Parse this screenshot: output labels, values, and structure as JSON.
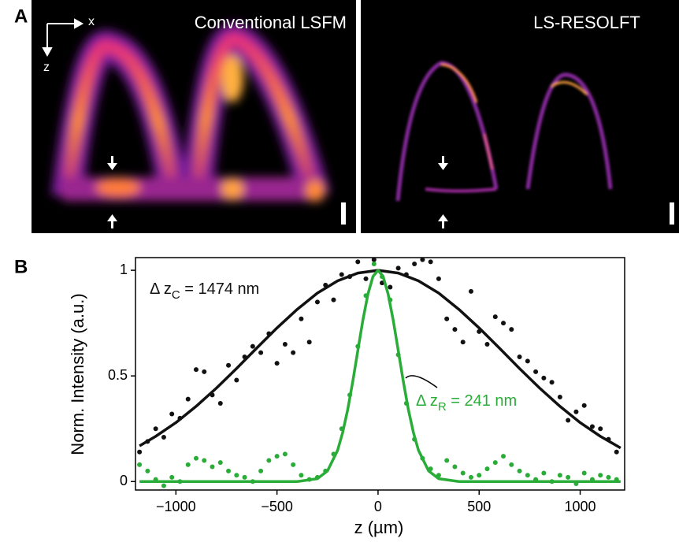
{
  "panel_a": {
    "label": "A",
    "axis_x": "x",
    "axis_z": "z",
    "left_title": "Conventional LSFM",
    "right_title": "LS-RESOLFT"
  },
  "chart_data": {
    "type": "scatter",
    "panel_label": "B",
    "x_label": "z (µm)",
    "y_label": "Norm. Intensity (a.u.)",
    "xlim": [
      -1200,
      1220
    ],
    "ylim": [
      -0.04,
      1.06
    ],
    "xticks": [
      {
        "value": -1000,
        "label": "−1000"
      },
      {
        "value": -500,
        "label": "−500"
      },
      0,
      500,
      1000
    ],
    "yticks": [
      0,
      0.5,
      1
    ],
    "annotations": [
      {
        "prefix": "Δ z",
        "sub": "C",
        "suffix": " = 1474 nm",
        "color": "#111111"
      },
      {
        "prefix": "Δ z",
        "sub": "R",
        "suffix": " = 241 nm",
        "color": "#2aad38"
      }
    ],
    "series": [
      {
        "type": "scatter",
        "color": "#111111",
        "x": [
          -1180,
          -1140,
          -1100,
          -1060,
          -1020,
          -980,
          -940,
          -900,
          -860,
          -820,
          -780,
          -740,
          -700,
          -660,
          -620,
          -580,
          -540,
          -500,
          -460,
          -420,
          -380,
          -340,
          -300,
          -260,
          -220,
          -180,
          -140,
          -100,
          -60,
          -20,
          20,
          60,
          100,
          140,
          180,
          220,
          260,
          300,
          340,
          380,
          420,
          460,
          500,
          540,
          580,
          620,
          660,
          700,
          740,
          780,
          820,
          860,
          900,
          940,
          980,
          1020,
          1060,
          1100,
          1140,
          1180
        ],
        "values": [
          0.14,
          0.19,
          0.25,
          0.21,
          0.32,
          0.3,
          0.39,
          0.53,
          0.52,
          0.41,
          0.37,
          0.55,
          0.48,
          0.59,
          0.64,
          0.61,
          0.7,
          0.56,
          0.65,
          0.61,
          0.77,
          0.66,
          0.85,
          0.93,
          0.86,
          0.98,
          0.97,
          1.04,
          0.96,
          1.05,
          0.94,
          0.92,
          1.01,
          0.98,
          1.03,
          1.05,
          1.04,
          0.96,
          0.77,
          0.72,
          0.66,
          0.9,
          0.71,
          0.65,
          0.78,
          0.75,
          0.72,
          0.59,
          0.57,
          0.52,
          0.49,
          0.47,
          0.4,
          0.29,
          0.33,
          0.36,
          0.26,
          0.25,
          0.2,
          0.14
        ]
      },
      {
        "type": "scatter",
        "color": "#2aad38",
        "x": [
          -1180,
          -1140,
          -1100,
          -1060,
          -1020,
          -980,
          -940,
          -900,
          -860,
          -820,
          -780,
          -740,
          -700,
          -660,
          -620,
          -580,
          -540,
          -500,
          -460,
          -420,
          -380,
          -340,
          -300,
          -260,
          -220,
          -180,
          -140,
          -100,
          -60,
          -20,
          20,
          60,
          100,
          140,
          180,
          220,
          260,
          300,
          340,
          380,
          420,
          460,
          500,
          540,
          580,
          620,
          660,
          700,
          740,
          780,
          820,
          860,
          900,
          940,
          980,
          1020,
          1060,
          1100,
          1140,
          1180
        ],
        "values": [
          0.08,
          0.05,
          0.01,
          -0.02,
          0.02,
          0,
          0.08,
          0.11,
          0.1,
          0.07,
          0.09,
          0.05,
          0.03,
          0.02,
          0,
          0.05,
          0.1,
          0.12,
          0.13,
          0.08,
          0.03,
          0.01,
          0.02,
          0.05,
          0.13,
          0.25,
          0.41,
          0.64,
          0.88,
          1.03,
          0.97,
          0.86,
          0.6,
          0.37,
          0.2,
          0.11,
          0.06,
          0.03,
          0.1,
          0.07,
          0.04,
          0.02,
          0.03,
          0.06,
          0.09,
          0.12,
          0.08,
          0.05,
          0.03,
          0.01,
          0.04,
          0,
          0.03,
          0.02,
          -0.01,
          0.04,
          0.01,
          0.03,
          0.02,
          0.01
        ]
      },
      {
        "type": "line",
        "color": "#111111",
        "x": [
          -1180,
          -1100,
          -1000,
          -900,
          -800,
          -700,
          -600,
          -500,
          -400,
          -300,
          -200,
          -100,
          0,
          100,
          200,
          300,
          400,
          500,
          600,
          700,
          800,
          900,
          1000,
          1100,
          1200
        ],
        "values": [
          0.169,
          0.214,
          0.279,
          0.356,
          0.442,
          0.535,
          0.632,
          0.727,
          0.815,
          0.892,
          0.95,
          0.987,
          1,
          0.987,
          0.95,
          0.892,
          0.815,
          0.727,
          0.632,
          0.535,
          0.442,
          0.356,
          0.279,
          0.214,
          0.159
        ]
      },
      {
        "type": "line",
        "color": "#2aad38",
        "x": [
          -1180,
          -400,
          -300,
          -250,
          -200,
          -175,
          -150,
          -125,
          -100,
          -75,
          -50,
          -25,
          0,
          25,
          50,
          75,
          100,
          125,
          150,
          175,
          200,
          250,
          300,
          400,
          1200
        ],
        "values": [
          0,
          0,
          0.0136,
          0.0505,
          0.148,
          0.232,
          0.341,
          0.474,
          0.62,
          0.764,
          0.887,
          0.971,
          1,
          0.971,
          0.887,
          0.764,
          0.62,
          0.474,
          0.341,
          0.232,
          0.148,
          0.0505,
          0.0136,
          0,
          0
        ]
      }
    ]
  }
}
